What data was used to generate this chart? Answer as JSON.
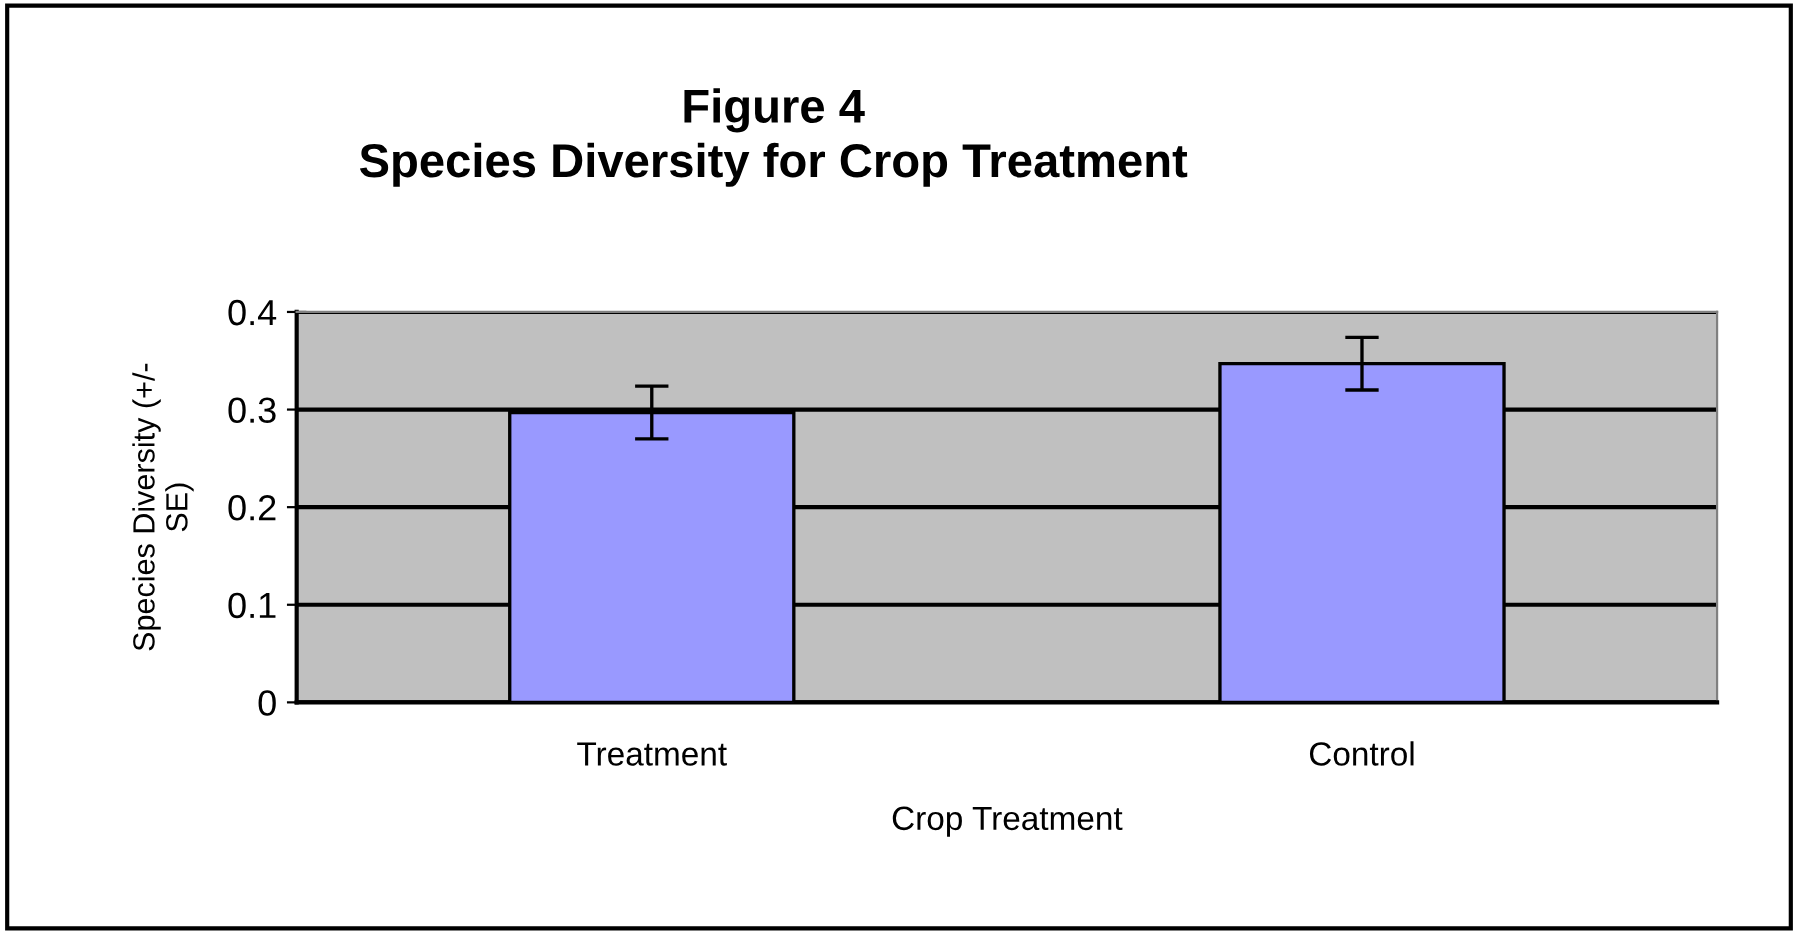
{
  "chart_data": {
    "type": "bar",
    "title": "Figure 4\nSpecies Diversity for Crop Treatment",
    "xlabel": "Crop Treatment",
    "ylabel": "Species Diversity (+/-\nSE)",
    "categories": [
      "Treatment",
      "Control"
    ],
    "values": [
      0.297,
      0.347
    ],
    "errors": [
      0.027,
      0.027
    ],
    "color": "#9999ff",
    "ylim": [
      0,
      0.4
    ],
    "yticks": [
      0,
      0.1,
      0.2,
      0.3,
      0.4
    ],
    "grid": "y"
  }
}
